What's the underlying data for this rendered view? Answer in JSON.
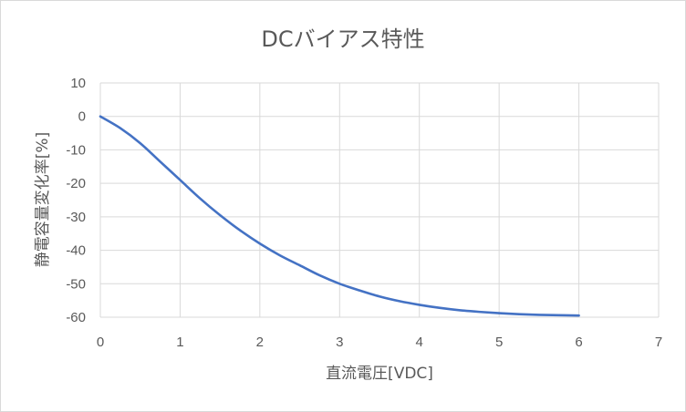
{
  "chart_data": {
    "type": "line",
    "title": "DCバイアス特性",
    "xlabel": "直流電圧[VDC]",
    "ylabel": "静電容量変化率[%]",
    "xlim": [
      0,
      7
    ],
    "ylim": [
      -60,
      10
    ],
    "xticks": [
      0,
      1,
      2,
      3,
      4,
      5,
      6,
      7
    ],
    "yticks": [
      10,
      0,
      -10,
      -20,
      -30,
      -40,
      -50,
      -60
    ],
    "grid": true,
    "legend": "none",
    "series": [
      {
        "color": "#4472c4",
        "x": [
          0,
          0.25,
          0.5,
          0.75,
          1.0,
          1.25,
          1.5,
          1.75,
          2.0,
          2.25,
          2.5,
          2.75,
          3.0,
          3.25,
          3.5,
          3.75,
          4.0,
          4.25,
          4.5,
          4.75,
          5.0,
          5.25,
          5.5,
          5.75,
          6.0
        ],
        "y": [
          0,
          -3.5,
          -8.0,
          -13.5,
          -19.0,
          -24.5,
          -29.5,
          -34.0,
          -38.0,
          -41.5,
          -44.5,
          -47.5,
          -50.0,
          -52.0,
          -53.8,
          -55.2,
          -56.3,
          -57.2,
          -57.9,
          -58.4,
          -58.8,
          -59.1,
          -59.3,
          -59.4,
          -59.5
        ]
      }
    ]
  }
}
